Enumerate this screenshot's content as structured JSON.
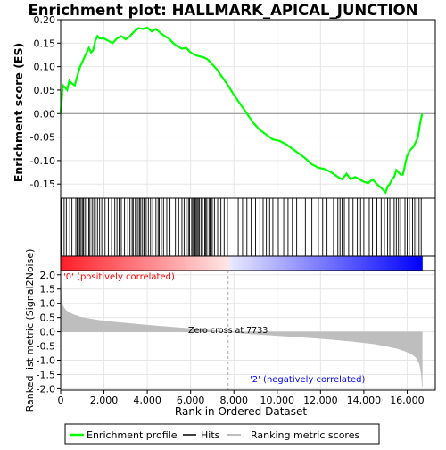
{
  "chart_data": {
    "type": "line",
    "title": "Enrichment plot: HALLMARK_APICAL_JUNCTION",
    "xlabel": "Rank in Ordered Dataset",
    "ylabel_top": "Enrichment score (ES)",
    "ylabel_bottom": "Ranked list metric (Signal2Noise)",
    "x_ticks": [
      0,
      2000,
      4000,
      6000,
      8000,
      10000,
      12000,
      14000,
      16000
    ],
    "x_tick_labels": [
      "0",
      "2,000",
      "4,000",
      "6,000",
      "8,000",
      "10,000",
      "12,000",
      "14,000",
      "16,000"
    ],
    "xlim": [
      0,
      17300
    ],
    "n_genes": 16700,
    "es_ylim": [
      -0.18,
      0.2
    ],
    "es_ticks": [
      0.2,
      0.15,
      0.1,
      0.05,
      0.0,
      -0.05,
      -0.1,
      -0.15
    ],
    "es_tick_labels": [
      "0.20",
      "0.15",
      "0.10",
      "0.05",
      "0.00",
      "-0.05",
      "-0.10",
      "-0.15"
    ],
    "metric_ylim": [
      -2.05,
      2.15
    ],
    "metric_ticks": [
      2.0,
      1.5,
      1.0,
      0.5,
      0.0,
      -0.5,
      -1.0,
      -1.5,
      -2.0
    ],
    "metric_tick_labels": [
      "2.0",
      "1.5",
      "1.0",
      "0.5",
      "0.0",
      "-0.5",
      "-1.0",
      "-1.5",
      "-2.0"
    ],
    "series": [
      {
        "name": "Enrichment profile",
        "color": "#00ff00",
        "x": [
          0,
          100,
          200,
          300,
          400,
          500,
          650,
          800,
          900,
          1000,
          1100,
          1200,
          1300,
          1400,
          1500,
          1600,
          1700,
          1800,
          2000,
          2200,
          2400,
          2600,
          2800,
          3000,
          3200,
          3400,
          3600,
          3800,
          4000,
          4200,
          4400,
          4600,
          4800,
          5000,
          5200,
          5400,
          5600,
          5800,
          6000,
          6200,
          6400,
          6600,
          6800,
          7000,
          7200,
          7500,
          7733,
          8000,
          8300,
          8600,
          8900,
          9200,
          9500,
          9800,
          10100,
          10400,
          10700,
          11000,
          11300,
          11600,
          11900,
          12200,
          12500,
          12800,
          13000,
          13200,
          13400,
          13600,
          13800,
          14000,
          14200,
          14400,
          14600,
          14800,
          15000,
          15100,
          15200,
          15300,
          15400,
          15500,
          15600,
          15700,
          15800,
          15900,
          16000,
          16100,
          16200,
          16300,
          16400,
          16500,
          16600,
          16700
        ],
        "y": [
          0.0,
          0.06,
          0.055,
          0.05,
          0.07,
          0.065,
          0.06,
          0.085,
          0.1,
          0.11,
          0.12,
          0.13,
          0.14,
          0.13,
          0.135,
          0.155,
          0.165,
          0.16,
          0.16,
          0.155,
          0.15,
          0.16,
          0.165,
          0.158,
          0.165,
          0.175,
          0.182,
          0.18,
          0.183,
          0.175,
          0.18,
          0.172,
          0.165,
          0.16,
          0.15,
          0.143,
          0.138,
          0.14,
          0.13,
          0.125,
          0.122,
          0.12,
          0.115,
          0.105,
          0.095,
          0.075,
          0.06,
          0.04,
          0.02,
          0.0,
          -0.02,
          -0.035,
          -0.045,
          -0.055,
          -0.058,
          -0.065,
          -0.075,
          -0.085,
          -0.095,
          -0.108,
          -0.115,
          -0.118,
          -0.125,
          -0.135,
          -0.14,
          -0.128,
          -0.14,
          -0.135,
          -0.14,
          -0.145,
          -0.148,
          -0.14,
          -0.15,
          -0.158,
          -0.168,
          -0.155,
          -0.15,
          -0.14,
          -0.135,
          -0.12,
          -0.125,
          -0.13,
          -0.13,
          -0.11,
          -0.09,
          -0.08,
          -0.075,
          -0.07,
          -0.06,
          -0.05,
          -0.02,
          0.0
        ]
      },
      {
        "name": "Hits",
        "color": "#000000",
        "x": [
          40,
          160,
          260,
          420,
          520,
          700,
          760,
          820,
          880,
          940,
          1000,
          1050,
          1120,
          1200,
          1300,
          1350,
          1450,
          1530,
          1600,
          1700,
          1800,
          1900,
          2050,
          2200,
          2350,
          2500,
          2600,
          2700,
          2800,
          2950,
          3100,
          3200,
          3300,
          3350,
          3450,
          3500,
          3580,
          3650,
          3700,
          3780,
          3850,
          3950,
          4050,
          4150,
          4250,
          4400,
          4500,
          4550,
          4650,
          4750,
          4900,
          5050,
          5300,
          5450,
          5600,
          5700,
          5800,
          5900,
          5950,
          6050,
          6100,
          6150,
          6200,
          6250,
          6300,
          6350,
          6400,
          6480,
          6550,
          6650,
          6700,
          6750,
          6850,
          6900,
          6950,
          7000,
          7100,
          7250,
          7400,
          7550,
          7700,
          8050,
          8200,
          8400,
          8600,
          8800,
          9000,
          9200,
          9350,
          9500,
          9650,
          9800,
          10050,
          10300,
          10500,
          10700,
          10900,
          11100,
          11300,
          11600,
          11900,
          12100,
          12300,
          12600,
          12800,
          12900,
          13000,
          13100,
          13300,
          13500,
          13700,
          13850,
          14000,
          14250,
          14400,
          14600,
          14800,
          14950,
          15100,
          15200,
          15300,
          15400,
          15500,
          15600,
          15700,
          15900,
          16000,
          16100,
          16250,
          16350,
          16450,
          16550,
          16650
        ]
      },
      {
        "name": "Ranking metric scores",
        "color": "#bebebe",
        "x": [
          0,
          30,
          80,
          150,
          250,
          400,
          600,
          900,
          1300,
          1800,
          2500,
          3500,
          4500,
          5500,
          6500,
          7200,
          7733,
          8500,
          9500,
          10500,
          11500,
          12500,
          13500,
          14500,
          15000,
          15500,
          15900,
          16200,
          16400,
          16550,
          16620,
          16670,
          16700
        ],
        "y": [
          2.0,
          1.2,
          0.95,
          0.85,
          0.75,
          0.67,
          0.6,
          0.52,
          0.46,
          0.4,
          0.34,
          0.27,
          0.2,
          0.14,
          0.08,
          0.03,
          0.0,
          -0.06,
          -0.11,
          -0.16,
          -0.21,
          -0.27,
          -0.34,
          -0.43,
          -0.5,
          -0.58,
          -0.68,
          -0.78,
          -0.9,
          -1.1,
          -1.3,
          -1.6,
          -1.95
        ]
      }
    ],
    "zero_cross_x": 7733,
    "annotations": {
      "positive": "'0' (positively correlated)",
      "negative": "'2' (negatively correlated)",
      "zero_cross": "Zero cross at 7733"
    },
    "legend": {
      "position": "bottom",
      "items": [
        "Enrichment profile",
        "Hits",
        "Ranking metric scores"
      ]
    },
    "grid": true
  }
}
